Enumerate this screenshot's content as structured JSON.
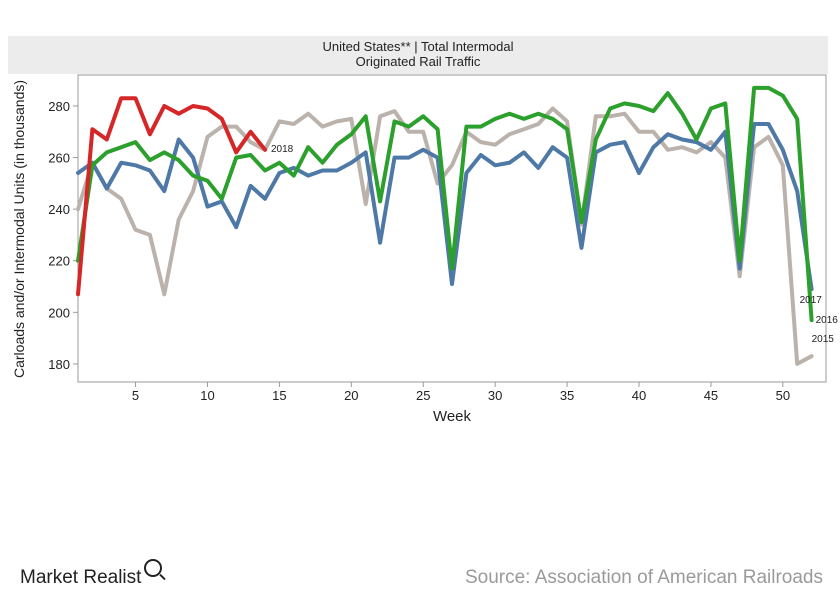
{
  "chart_data": {
    "type": "line",
    "title": "United States** | Total Intermodal",
    "subtitle": "Originated Rail Traffic",
    "xlabel": "Week",
    "ylabel": "Carloads and/or Intermodal Units (in thousands)",
    "xlim": [
      1,
      53
    ],
    "ylim": [
      173,
      292
    ],
    "xticks": [
      5,
      10,
      15,
      20,
      25,
      30,
      35,
      40,
      45,
      50
    ],
    "yticks": [
      180,
      200,
      220,
      240,
      260,
      280
    ],
    "grid": false,
    "series": [
      {
        "name": "2015",
        "color": "#bbb2ac",
        "values": [
          240,
          258,
          248,
          244,
          232,
          230,
          207,
          236,
          247,
          268,
          272,
          272,
          266,
          263,
          274,
          273,
          277,
          272,
          274,
          275,
          242,
          276,
          278,
          270,
          270,
          250,
          257,
          270,
          266,
          265,
          269,
          271,
          273,
          279,
          274,
          234,
          276,
          276,
          277,
          270,
          270,
          263,
          264,
          262,
          266,
          260,
          214,
          264,
          268,
          257,
          180,
          183
        ]
      },
      {
        "name": "2017",
        "color": "#4e79a7",
        "values": [
          254,
          258,
          248,
          258,
          257,
          255,
          247,
          267,
          260,
          241,
          243,
          233,
          249,
          244,
          254,
          256,
          253,
          255,
          255,
          258,
          262,
          227,
          260,
          260,
          263,
          260,
          211,
          254,
          261,
          257,
          258,
          262,
          256,
          264,
          260,
          225,
          262,
          265,
          266,
          254,
          264,
          269,
          267,
          266,
          263,
          270,
          217,
          273,
          273,
          263,
          247,
          209
        ]
      },
      {
        "name": "2016",
        "color": "#2ca02c",
        "values": [
          220,
          257,
          262,
          264,
          266,
          259,
          262,
          259,
          253,
          251,
          244,
          260,
          261,
          255,
          258,
          253,
          264,
          258,
          265,
          269,
          276,
          243,
          274,
          272,
          276,
          271,
          217,
          272,
          272,
          275,
          277,
          275,
          277,
          275,
          271,
          235,
          267,
          279,
          281,
          280,
          278,
          285,
          277,
          267,
          279,
          281,
          220,
          287,
          287,
          284,
          275,
          197
        ]
      },
      {
        "name": "2018",
        "color": "#d62728",
        "values": [
          207,
          271,
          267,
          283,
          283,
          269,
          280,
          277,
          280,
          279,
          275,
          262,
          270,
          263
        ]
      }
    ]
  },
  "footer": {
    "brand": "Market Realist",
    "source": "Source: Association of American Railroads"
  }
}
